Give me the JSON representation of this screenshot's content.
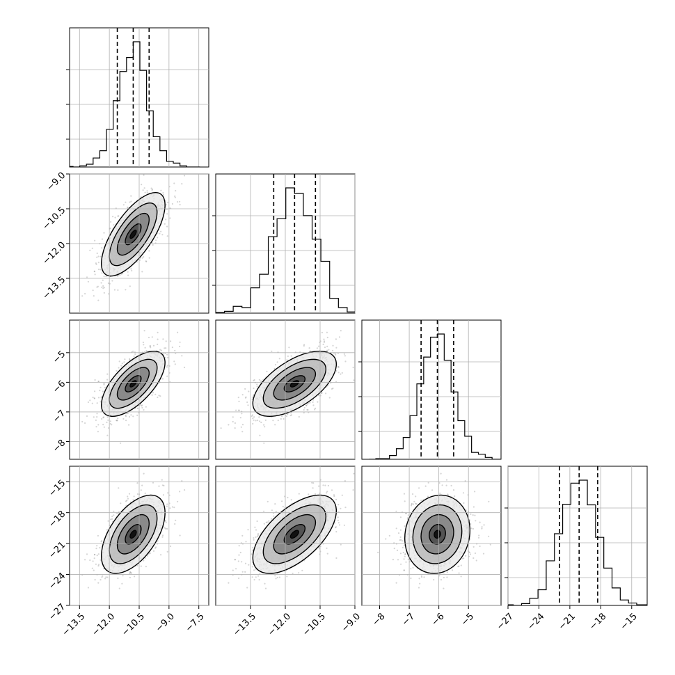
{
  "chart_data": {
    "type": "corner",
    "parameters": [
      {
        "range": [
          -14.0,
          -7.0
        ],
        "ticks": [
          -13.5,
          -12.0,
          -10.5,
          -9.0,
          -7.5
        ],
        "tick_labels": [
          "−13.5",
          "−12.0",
          "−10.5",
          "−9.0",
          "−7.5"
        ],
        "median": -10.8,
        "q16": -11.6,
        "q84": -10.0,
        "std": 0.8
      },
      {
        "range": [
          -15.0,
          -9.0
        ],
        "ticks": [
          -13.5,
          -12.0,
          -10.5,
          -9.0
        ],
        "tick_labels": [
          "−13.5",
          "−12.0",
          "−10.5",
          "−9.0"
        ],
        "median": -11.6,
        "q16": -12.5,
        "q84": -10.7,
        "std": 0.9
      },
      {
        "range": [
          -8.6,
          -3.9
        ],
        "ticks": [
          -8,
          -7,
          -6,
          -5
        ],
        "tick_labels": [
          "−8",
          "−7",
          "−6",
          "−5"
        ],
        "median": -6.05,
        "q16": -6.6,
        "q84": -5.5,
        "std": 0.55
      },
      {
        "range": [
          -27.0,
          -13.5
        ],
        "ticks": [
          -27,
          -24,
          -21,
          -18,
          -15
        ],
        "tick_labels": [
          "−27",
          "−24",
          "−21",
          "−18",
          "−15"
        ],
        "median": -20.1,
        "q16": -22.0,
        "q84": -18.3,
        "std": 1.9
      }
    ],
    "correlations": [
      [
        1,
        0.7,
        0.65,
        0.55
      ],
      [
        0.7,
        1,
        0.6,
        0.6
      ],
      [
        0.65,
        0.6,
        1,
        0.1
      ],
      [
        0.55,
        0.6,
        0.1,
        1
      ]
    ],
    "hist_bins": 20,
    "scatter_points": 1200,
    "contour_levels": [
      0.5,
      1.0,
      1.5,
      2.0
    ],
    "grid": true,
    "quantiles": [
      0.16,
      0.5,
      0.84
    ],
    "colors": {
      "scatter": "#888888",
      "density": "#000000",
      "contour": "#000000",
      "grid": "#b0b0b0",
      "axes": "#000000"
    }
  }
}
